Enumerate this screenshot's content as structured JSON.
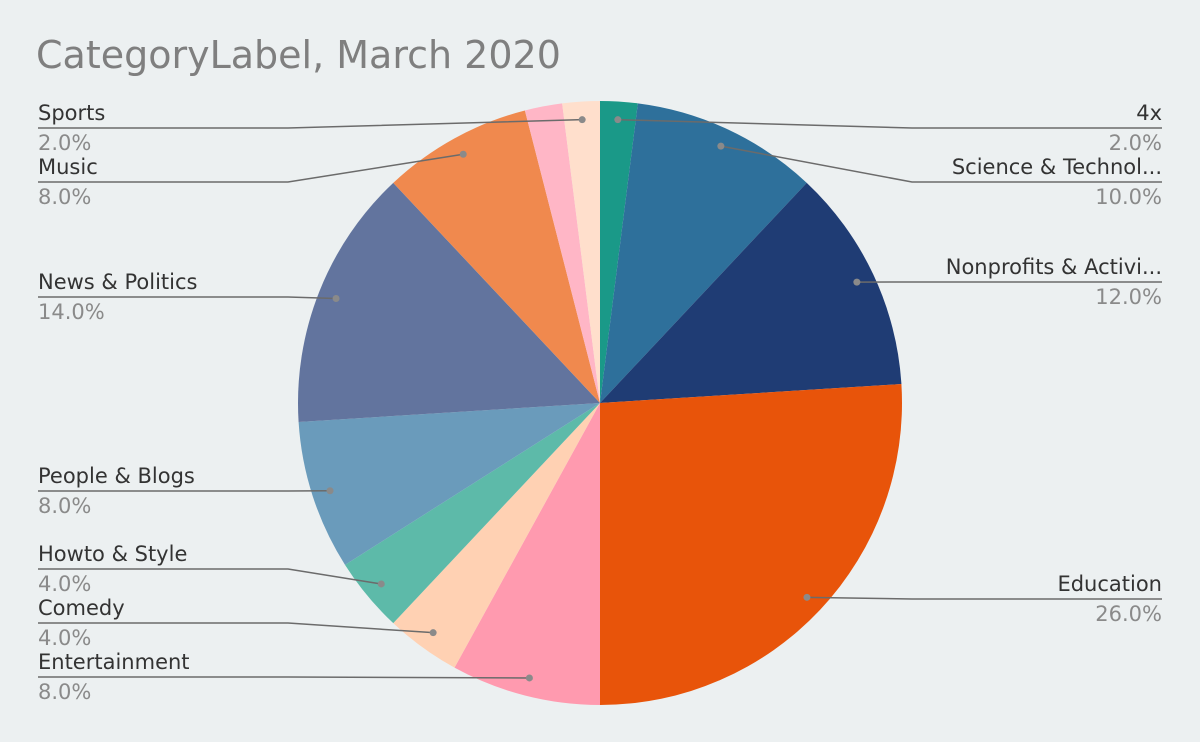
{
  "chart_data": {
    "type": "pie",
    "title": "CategoryLabel, March 2020",
    "categories": [
      "4x",
      "Science & Technol...",
      "Nonprofits & Activi...",
      "Education",
      "Entertainment",
      "Comedy",
      "Howto & Style",
      "People & Blogs",
      "News & Politics",
      "Music",
      null,
      "Sports"
    ],
    "values": [
      2,
      10,
      12,
      26,
      8,
      4,
      4,
      8,
      14,
      8,
      2,
      2
    ],
    "value_labels": [
      "2.0%",
      "10.0%",
      "12.0%",
      "26.0%",
      "8.0%",
      "4.0%",
      "4.0%",
      "8.0%",
      "14.0%",
      "8.0%",
      null,
      "2.0%"
    ],
    "colors": [
      "#1a9988",
      "#2e709b",
      "#1f3c74",
      "#e8540a",
      "#ff9aaf",
      "#ffd1b3",
      "#5dbaa9",
      "#6a9bbb",
      "#62749e",
      "#f0894e",
      "#ffb6c6",
      "#ffdfcc"
    ]
  }
}
